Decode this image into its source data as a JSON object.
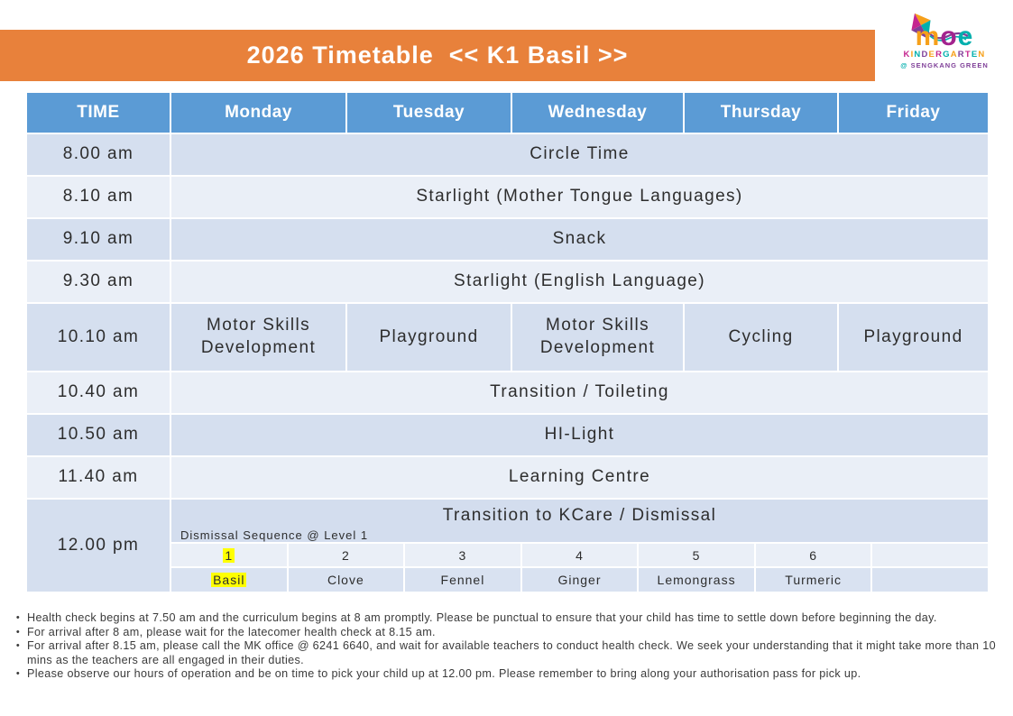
{
  "colors": {
    "banner_orange": "#E8813B",
    "header_blue": "#5B9BD5",
    "row_dark": "#D5DFEF",
    "row_light": "#EAEFF7",
    "sequence_numbers_bg": "#EAEFF7",
    "sequence_names_bg": "#D9E2F1",
    "highlight_yellow": "#FFFF00"
  },
  "header": {
    "title": "2026 Timetable  << K1 Basil >>"
  },
  "logo": {
    "brand": "moe",
    "brand_colors": [
      "#F6A01A",
      "#A3238E",
      "#00AFAD"
    ],
    "sub": "KINDERGARTEN",
    "sub_colors": [
      "#C4258F",
      "#F6A01A",
      "#00AFAD",
      "#7F3F98",
      "#F6A01A",
      "#C4258F",
      "#00AFAD",
      "#F6A01A",
      "#7F3F98",
      "#C4258F",
      "#00AFAD",
      "#F6A01A"
    ],
    "location": "@ SENGKANG GREEN",
    "location_color": "#7F3F98",
    "at_color": "#00AFAD",
    "kite_colors": [
      "#F6A01A",
      "#00AFAD",
      "#7F3F98",
      "#C4258F"
    ],
    "tail_color": "#7F3F98",
    "tail2_color": "#00AFAD"
  },
  "timetable": {
    "columns": [
      "TIME",
      "Monday",
      "Tuesday",
      "Wednesday",
      "Thursday",
      "Friday"
    ],
    "rows": [
      {
        "time": "8.00 am",
        "activity": "Circle Time"
      },
      {
        "time": "8.10 am",
        "activity": "Starlight (Mother Tongue Languages)"
      },
      {
        "time": "9.10 am",
        "activity": "Snack"
      },
      {
        "time": "9.30 am",
        "activity": "Starlight (English Language)"
      },
      {
        "time": "10.10 am",
        "activities": [
          "Motor Skills Development",
          "Playground",
          "Motor Skills Development",
          "Cycling",
          "Playground"
        ]
      },
      {
        "time": "10.40 am",
        "activity": "Transition / Toileting"
      },
      {
        "time": "10.50 am",
        "activity": "HI-Light"
      },
      {
        "time": "11.40 am",
        "activity": "Learning Centre"
      },
      {
        "time": "12.00 pm",
        "activity": "Transition to KCare / Dismissal",
        "dismissal_label": "Dismissal Sequence @ Level 1",
        "sequence": [
          {
            "num": "1",
            "name": "Basil",
            "highlight": true
          },
          {
            "num": "2",
            "name": "Clove"
          },
          {
            "num": "3",
            "name": "Fennel"
          },
          {
            "num": "4",
            "name": "Ginger"
          },
          {
            "num": "5",
            "name": "Lemongrass"
          },
          {
            "num": "6",
            "name": "Turmeric"
          }
        ]
      }
    ]
  },
  "notes": [
    "Health check begins at 7.50 am and the curriculum begins at 8 am promptly. Please be punctual to ensure that your child has time to settle down before beginning the day.",
    "For arrival after 8 am, please wait for the latecomer health check at 8.15 am.",
    "For arrival after 8.15 am, please call the MK office @ 6241 6640, and wait for available teachers to conduct health check. We seek your understanding that it might take more than 10 mins as the teachers are all engaged in their duties.",
    "Please observe our hours of operation and be on time to pick your child up at 12.00 pm. Please remember to bring along your authorisation pass for pick up."
  ]
}
